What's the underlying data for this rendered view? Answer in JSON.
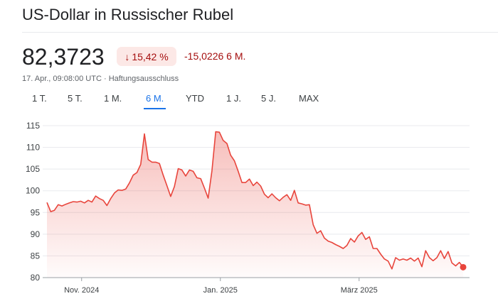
{
  "header": {
    "title": "US-Dollar in Russischer Rubel"
  },
  "quote": {
    "price": "82,3723",
    "change_arrow": "↓",
    "change_percent": "15,42 %",
    "change_abs": "-15,0226 6 M.",
    "timestamp": "17. Apr., 09:08:00 UTC · ",
    "disclaimer_link": "Haftungsausschluss"
  },
  "colors": {
    "negative": "#a50e0e",
    "negative_bg": "#fce8e6",
    "line": "#e8453c",
    "accent": "#1a73e8"
  },
  "tabs": [
    {
      "label": "1 T.",
      "active": false
    },
    {
      "label": "5 T.",
      "active": false
    },
    {
      "label": "1 M.",
      "active": false
    },
    {
      "label": "6 M.",
      "active": true
    },
    {
      "label": "YTD",
      "active": false
    },
    {
      "label": "1 J.",
      "active": false
    },
    {
      "label": "5 J.",
      "active": false
    },
    {
      "label": "MAX",
      "active": false
    }
  ],
  "chart_data": {
    "type": "area",
    "ylim": [
      80,
      115
    ],
    "yticks": [
      "115",
      "110",
      "105",
      "100",
      "95",
      "90",
      "85",
      "80"
    ],
    "xticks": [
      {
        "label": "Nov. 2024",
        "t": 0.0833
      },
      {
        "label": "Jan. 2025",
        "t": 0.4167
      },
      {
        "label": "März 2025",
        "t": 0.75
      }
    ],
    "grid": true,
    "series": [
      {
        "values": [
          97.3,
          95.2,
          95.5,
          96.8,
          96.5,
          96.9,
          97.2,
          97.5,
          97.4,
          97.6,
          97.2,
          97.8,
          97.4,
          98.8,
          98.2,
          97.8,
          96.6,
          98.2,
          99.5,
          100.2,
          100.1,
          100.4,
          101.8,
          103.6,
          104.2,
          106.1,
          113.1,
          107.2,
          106.6,
          106.6,
          106.3,
          103.6,
          101.2,
          98.7,
          101.0,
          105.1,
          104.8,
          103.4,
          104.8,
          104.5,
          103.0,
          102.8,
          100.6,
          98.3,
          104.6,
          113.6,
          113.5,
          111.6,
          110.9,
          108.2,
          106.9,
          104.5,
          101.9,
          101.9,
          102.7,
          101.2,
          102.0,
          101.1,
          99.2,
          98.4,
          99.3,
          98.4,
          97.7,
          98.5,
          99.1,
          97.8,
          100.1,
          97.2,
          97.0,
          96.7,
          96.8,
          92.2,
          90.2,
          90.8,
          89.1,
          88.4,
          88.1,
          87.6,
          87.2,
          86.7,
          87.4,
          89.0,
          88.2,
          89.6,
          90.4,
          88.8,
          89.4,
          86.7,
          86.7,
          85.4,
          84.3,
          83.8,
          82.0,
          84.6,
          84.0,
          84.3,
          84.0,
          84.5,
          83.8,
          84.5,
          82.5,
          86.2,
          84.6,
          83.9,
          84.6,
          86.2,
          84.4,
          86.0,
          83.4,
          82.7,
          83.5,
          82.4
        ]
      }
    ]
  }
}
